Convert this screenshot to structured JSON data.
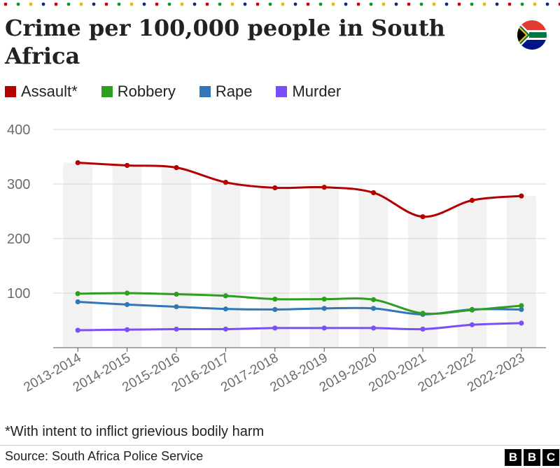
{
  "header": {
    "title": "Crime per 100,000 people in South Africa",
    "dot_colors": [
      "#d40000",
      "#0a9a2a",
      "#f2b500",
      "#0b2a7a"
    ]
  },
  "icons": {
    "flag": "south-africa-flag-icon"
  },
  "legend": [
    {
      "label": "Assault*",
      "color": "#b30000"
    },
    {
      "label": "Robbery",
      "color": "#2e9e1f"
    },
    {
      "label": "Rape",
      "color": "#3277b5"
    },
    {
      "label": "Murder",
      "color": "#7a4ff5"
    }
  ],
  "chart_data": {
    "type": "line",
    "categories": [
      "2013-2014",
      "2014-2015",
      "2015-2016",
      "2016-2017",
      "2017-2018",
      "2018-2019",
      "2019-2020",
      "2020-2021",
      "2021-2022",
      "2022-2023"
    ],
    "y_ticks": [
      "100",
      "200",
      "300",
      "400"
    ],
    "ylim": [
      0,
      400
    ],
    "grid": true,
    "legend_position": "top-left",
    "background_bars": "alternating shaded bands behind each year, height matching the Assault value",
    "series": [
      {
        "name": "Assault*",
        "color": "#b30000",
        "values": [
          339,
          334,
          330,
          303,
          293,
          294,
          284,
          240,
          270,
          278
        ]
      },
      {
        "name": "Robbery",
        "color": "#2e9e1f",
        "values": [
          99,
          100,
          98,
          95,
          89,
          89,
          88,
          63,
          69,
          77
        ]
      },
      {
        "name": "Rape",
        "color": "#3277b5",
        "values": [
          84,
          79,
          75,
          71,
          70,
          72,
          72,
          61,
          70,
          70
        ]
      },
      {
        "name": "Murder",
        "color": "#7a4ff5",
        "values": [
          32,
          33,
          34,
          34,
          36,
          36,
          36,
          34,
          42,
          45
        ]
      }
    ]
  },
  "footnote": "*With intent to inflict grievious bodily harm",
  "source": "Source: South Africa Police Service",
  "logo": [
    "B",
    "B",
    "C"
  ]
}
